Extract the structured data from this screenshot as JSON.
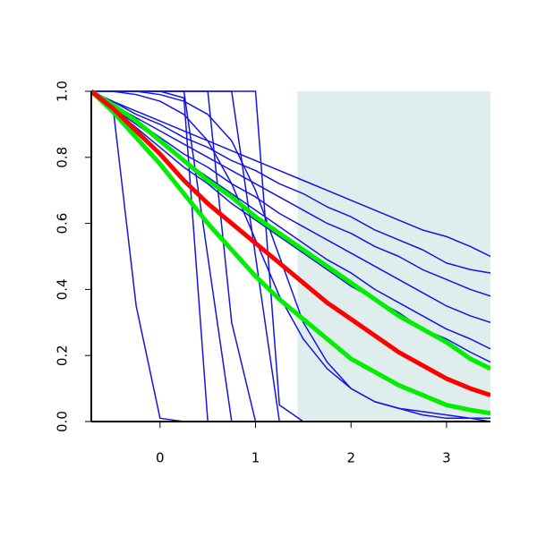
{
  "chart_data": {
    "type": "line",
    "x": [
      -0.72,
      -0.5,
      -0.25,
      0,
      0.25,
      0.5,
      0.75,
      1,
      1.25,
      1.5,
      1.75,
      2,
      2.25,
      2.5,
      2.75,
      3,
      3.25,
      3.46
    ],
    "xlim": [
      -0.72,
      3.46
    ],
    "xticks": [
      0,
      1,
      2,
      3
    ],
    "ylim": [
      0,
      1
    ],
    "yticks": [
      {
        "value": 0,
        "label": "0.0"
      },
      0.2,
      0.4,
      0.6,
      0.8,
      {
        "value": 1,
        "label": "1.0"
      }
    ],
    "shaded_region": {
      "x": [
        1.44,
        3.46
      ],
      "color": "#e0eded"
    },
    "series": [
      {
        "color": "#1414e6",
        "linewidth": 1.5,
        "values": [
          1,
          0.97,
          0.35,
          0.01,
          0,
          0,
          0,
          0,
          0,
          0,
          0,
          0,
          0,
          0,
          0,
          0,
          0,
          0
        ]
      },
      {
        "color": "#1414e6",
        "linewidth": 1.5,
        "values": [
          1,
          1,
          1,
          1,
          0.98,
          0,
          0,
          0,
          0,
          0,
          0,
          0,
          0,
          0,
          0,
          0,
          0,
          0
        ]
      },
      {
        "color": "#1414e6",
        "linewidth": 1.5,
        "values": [
          1,
          1,
          1,
          1,
          1,
          0.5,
          0,
          0,
          0,
          0,
          0,
          0,
          0,
          0,
          0,
          0,
          0,
          0
        ]
      },
      {
        "color": "#1414e6",
        "linewidth": 1.5,
        "values": [
          1,
          1,
          1,
          1,
          1,
          1,
          0.3,
          0,
          0,
          0,
          0,
          0,
          0,
          0,
          0,
          0,
          0,
          0
        ]
      },
      {
        "color": "#1414e6",
        "linewidth": 1.5,
        "values": [
          1,
          1,
          1,
          1,
          1,
          1,
          1,
          0.5,
          0,
          0,
          0,
          0,
          0,
          0,
          0,
          0,
          0,
          0
        ]
      },
      {
        "color": "#1414e6",
        "linewidth": 1.5,
        "values": [
          1,
          1,
          1,
          1,
          1,
          1,
          1,
          1,
          0.05,
          0,
          0,
          0,
          0,
          0,
          0,
          0,
          0,
          0
        ]
      },
      {
        "color": "#1414e6",
        "linewidth": 1.5,
        "values": [
          1,
          1,
          0.99,
          0.97,
          0.93,
          0.85,
          0.72,
          0.55,
          0.38,
          0.25,
          0.16,
          0.1,
          0.06,
          0.04,
          0.02,
          0.01,
          0.01,
          0
        ]
      },
      {
        "color": "#1414e6",
        "linewidth": 1.5,
        "values": [
          1,
          1,
          1,
          0.99,
          0.97,
          0.93,
          0.85,
          0.7,
          0.5,
          0.3,
          0.18,
          0.1,
          0.06,
          0.04,
          0.03,
          0.02,
          0.01,
          0.01
        ]
      },
      {
        "color": "#1414e6",
        "linewidth": 1.5,
        "values": [
          1,
          0.97,
          0.94,
          0.91,
          0.88,
          0.85,
          0.82,
          0.79,
          0.76,
          0.73,
          0.7,
          0.67,
          0.64,
          0.61,
          0.58,
          0.56,
          0.53,
          0.5
        ]
      },
      {
        "color": "#1414e6",
        "linewidth": 1.5,
        "values": [
          1,
          0.97,
          0.93,
          0.9,
          0.86,
          0.83,
          0.79,
          0.76,
          0.72,
          0.69,
          0.65,
          0.62,
          0.58,
          0.55,
          0.52,
          0.48,
          0.46,
          0.45
        ]
      },
      {
        "color": "#1414e6",
        "linewidth": 1.5,
        "values": [
          1,
          0.96,
          0.92,
          0.88,
          0.84,
          0.8,
          0.76,
          0.72,
          0.68,
          0.64,
          0.6,
          0.57,
          0.53,
          0.5,
          0.46,
          0.43,
          0.4,
          0.38
        ]
      },
      {
        "color": "#1414e6",
        "linewidth": 1.5,
        "values": [
          1,
          0.96,
          0.91,
          0.86,
          0.81,
          0.77,
          0.72,
          0.68,
          0.63,
          0.59,
          0.55,
          0.51,
          0.47,
          0.43,
          0.39,
          0.35,
          0.32,
          0.3
        ]
      },
      {
        "color": "#1414e6",
        "linewidth": 1.5,
        "values": [
          1,
          0.95,
          0.9,
          0.85,
          0.79,
          0.74,
          0.69,
          0.64,
          0.59,
          0.54,
          0.49,
          0.45,
          0.4,
          0.36,
          0.32,
          0.28,
          0.25,
          0.22
        ]
      },
      {
        "color": "#1414e6",
        "linewidth": 1.5,
        "values": [
          1,
          0.95,
          0.89,
          0.83,
          0.77,
          0.72,
          0.66,
          0.61,
          0.56,
          0.51,
          0.46,
          0.41,
          0.37,
          0.33,
          0.28,
          0.25,
          0.21,
          0.18
        ]
      },
      {
        "color": "#00ee00",
        "linewidth": 5,
        "values": [
          1,
          0.96,
          0.91,
          0.85,
          0.79,
          0.73,
          0.68,
          0.62,
          0.57,
          0.52,
          0.47,
          0.42,
          0.37,
          0.32,
          0.28,
          0.24,
          0.19,
          0.16
        ]
      },
      {
        "color": "#00ee00",
        "linewidth": 5,
        "values": [
          1,
          0.94,
          0.86,
          0.78,
          0.69,
          0.6,
          0.52,
          0.44,
          0.37,
          0.31,
          0.25,
          0.19,
          0.15,
          0.11,
          0.08,
          0.05,
          0.035,
          0.025
        ]
      },
      {
        "color": "#ff0000",
        "linewidth": 5,
        "values": [
          1,
          0.95,
          0.88,
          0.81,
          0.73,
          0.66,
          0.6,
          0.54,
          0.48,
          0.42,
          0.36,
          0.31,
          0.26,
          0.21,
          0.17,
          0.13,
          0.1,
          0.08
        ]
      }
    ]
  }
}
